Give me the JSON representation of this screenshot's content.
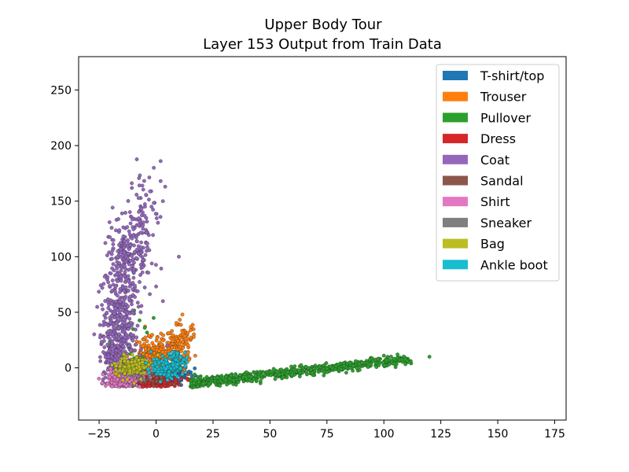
{
  "chart_data": {
    "type": "scatter",
    "title": "Upper Body Tour",
    "subtitle": "Layer 153 Output from Train Data",
    "xlabel": "",
    "ylabel": "",
    "xlim": [
      -34,
      180
    ],
    "ylim": [
      -47,
      280
    ],
    "x_ticks": [
      -25,
      0,
      25,
      50,
      75,
      100,
      125,
      150,
      175
    ],
    "y_ticks": [
      0,
      50,
      100,
      150,
      200,
      250
    ],
    "grid": false,
    "legend_position": "top-right",
    "series": [
      {
        "name": "T-shirt/top",
        "color": "#1f77b4",
        "clusters": [
          {
            "cx": 0,
            "cy": -6,
            "sx": 5,
            "sy": 5,
            "n": 220
          },
          {
            "cx": 10,
            "cy": -6,
            "sx": 3,
            "sy": 4,
            "n": 60
          }
        ]
      },
      {
        "name": "Trouser",
        "color": "#ff7f0e",
        "clusters": [
          {
            "cx": 2,
            "cy": 12,
            "sx": 6,
            "sy": 9,
            "n": 300
          },
          {
            "cx": 12,
            "cy": 30,
            "sx": 3,
            "sy": 6,
            "n": 50
          },
          {
            "cx": -5,
            "cy": 5,
            "sx": 4,
            "sy": 5,
            "n": 80
          }
        ]
      },
      {
        "name": "Pullover",
        "color": "#2ca02c",
        "trend": {
          "x0": 15,
          "x1": 112,
          "y0": -14,
          "y1": 8,
          "n": 650,
          "spread": 2.2
        },
        "clusters": [
          {
            "cx": -12,
            "cy": 30,
            "sx": 5,
            "sy": 20,
            "n": 15
          }
        ],
        "points": [
          [
            120,
            10
          ],
          [
            100,
            11
          ],
          [
            106,
            12
          ],
          [
            4,
            5
          ],
          [
            -6,
            10
          ]
        ]
      },
      {
        "name": "Dress",
        "color": "#d62728",
        "clusters": [
          {
            "cx": -6,
            "cy": -13,
            "sx": 5,
            "sy": 3,
            "n": 200
          },
          {
            "cx": 4,
            "cy": -12,
            "sx": 4,
            "sy": 3,
            "n": 50
          }
        ]
      },
      {
        "name": "Coat",
        "color": "#9467bd",
        "clusters": [
          {
            "cx": -16,
            "cy": 40,
            "sx": 4,
            "sy": 25,
            "n": 350
          },
          {
            "cx": -12,
            "cy": 100,
            "sx": 5,
            "sy": 20,
            "n": 220
          },
          {
            "cx": -6,
            "cy": 140,
            "sx": 4,
            "sy": 20,
            "n": 60
          },
          {
            "cx": -18,
            "cy": 10,
            "sx": 3,
            "sy": 10,
            "n": 120
          }
        ],
        "points": [
          [
            2,
            186
          ],
          [
            -1,
            180
          ],
          [
            2,
            168
          ],
          [
            4,
            163
          ],
          [
            -6,
            164
          ],
          [
            3,
            150
          ],
          [
            -2,
            145
          ],
          [
            10,
            100
          ],
          [
            3,
            60
          ],
          [
            5,
            20
          ]
        ]
      },
      {
        "name": "Sandal",
        "color": "#8c564b",
        "clusters": [
          {
            "cx": -2,
            "cy": -8,
            "sx": 5,
            "sy": 4,
            "n": 50
          }
        ]
      },
      {
        "name": "Shirt",
        "color": "#e377c2",
        "clusters": [
          {
            "cx": -16,
            "cy": -11,
            "sx": 3,
            "sy": 4,
            "n": 200
          },
          {
            "cx": -10,
            "cy": -4,
            "sx": 4,
            "sy": 6,
            "n": 60
          }
        ]
      },
      {
        "name": "Sneaker",
        "color": "#7f7f7f",
        "clusters": [
          {
            "cx": -8,
            "cy": -3,
            "sx": 4,
            "sy": 5,
            "n": 40
          }
        ]
      },
      {
        "name": "Bag",
        "color": "#bcbd22",
        "clusters": [
          {
            "cx": -12,
            "cy": 0,
            "sx": 3,
            "sy": 5,
            "n": 130
          },
          {
            "cx": -6,
            "cy": 4,
            "sx": 3,
            "sy": 4,
            "n": 40
          }
        ]
      },
      {
        "name": "Ankle boot",
        "color": "#17becf",
        "clusters": [
          {
            "cx": 5,
            "cy": 0,
            "sx": 3,
            "sy": 5,
            "n": 140
          },
          {
            "cx": 8,
            "cy": 8,
            "sx": 3,
            "sy": 4,
            "n": 40
          }
        ]
      }
    ]
  }
}
